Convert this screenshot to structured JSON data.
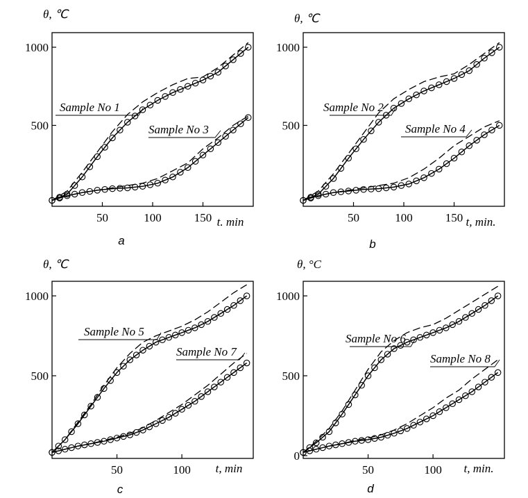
{
  "chart_data": [
    {
      "type": "line",
      "panel_label": "a",
      "ylabel": "θ, ℃",
      "xlabel": "t. min",
      "x_ticks": [
        50,
        100,
        150
      ],
      "y_ticks": [
        500,
        1000
      ],
      "xlim": [
        0,
        200
      ],
      "ylim": [
        0,
        1000
      ],
      "series": [
        {
          "name": "Sample No 1",
          "style": "circles",
          "x": [
            0,
            15,
            30,
            45,
            60,
            75,
            90,
            105,
            120,
            135,
            150,
            165,
            180,
            195
          ],
          "y": [
            20,
            60,
            170,
            300,
            420,
            520,
            600,
            660,
            710,
            750,
            790,
            840,
            920,
            1000
          ]
        },
        {
          "name": "Sample No 1",
          "style": "dashed",
          "x": [
            0,
            15,
            30,
            45,
            60,
            75,
            90,
            105,
            120,
            135,
            150,
            165,
            180,
            195
          ],
          "y": [
            20,
            80,
            200,
            330,
            460,
            570,
            650,
            710,
            760,
            800,
            810,
            870,
            950,
            1030
          ]
        },
        {
          "name": "Sample No 3",
          "style": "circles",
          "x": [
            0,
            15,
            30,
            45,
            60,
            75,
            90,
            105,
            120,
            135,
            150,
            165,
            180,
            195
          ],
          "y": [
            20,
            50,
            70,
            85,
            95,
            100,
            110,
            130,
            170,
            230,
            310,
            390,
            470,
            550
          ]
        },
        {
          "name": "Sample No 3",
          "style": "dashed",
          "x": [
            0,
            15,
            30,
            45,
            60,
            75,
            90,
            105,
            120,
            135,
            150,
            165,
            180,
            195
          ],
          "y": [
            20,
            50,
            70,
            85,
            100,
            115,
            130,
            160,
            210,
            260,
            350,
            420,
            500,
            560
          ]
        }
      ]
    },
    {
      "type": "line",
      "panel_label": "b",
      "ylabel": "θ, ℃",
      "xlabel": "t, min.",
      "x_ticks": [
        50,
        100,
        150
      ],
      "y_ticks": [
        500,
        1000
      ],
      "xlim": [
        0,
        200
      ],
      "ylim": [
        0,
        1000
      ],
      "series": [
        {
          "name": "Sample No 2",
          "style": "circles",
          "x": [
            0,
            15,
            30,
            45,
            60,
            75,
            90,
            105,
            120,
            135,
            150,
            165,
            180,
            195
          ],
          "y": [
            20,
            60,
            160,
            290,
            410,
            520,
            610,
            670,
            720,
            760,
            800,
            850,
            930,
            1000
          ]
        },
        {
          "name": "Sample No 2",
          "style": "dashed",
          "x": [
            0,
            15,
            30,
            45,
            60,
            75,
            90,
            105,
            120,
            135,
            150,
            165,
            180,
            195
          ],
          "y": [
            20,
            80,
            190,
            320,
            450,
            580,
            670,
            730,
            780,
            810,
            830,
            890,
            960,
            1030
          ]
        },
        {
          "name": "Sample No 4",
          "style": "circles",
          "x": [
            0,
            15,
            30,
            45,
            60,
            75,
            90,
            105,
            120,
            135,
            150,
            165,
            180,
            195
          ],
          "y": [
            20,
            50,
            70,
            80,
            90,
            95,
            105,
            125,
            165,
            220,
            290,
            370,
            440,
            500
          ]
        },
        {
          "name": "Sample No 4",
          "style": "dashed",
          "x": [
            0,
            15,
            30,
            45,
            60,
            75,
            90,
            105,
            120,
            135,
            150,
            165,
            180,
            195
          ],
          "y": [
            20,
            50,
            70,
            85,
            100,
            115,
            130,
            165,
            220,
            290,
            370,
            430,
            490,
            530
          ]
        }
      ]
    },
    {
      "type": "line",
      "panel_label": "c",
      "ylabel": "θ, ℃",
      "xlabel": "t, min",
      "x_ticks": [
        50,
        100
      ],
      "y_ticks": [
        500,
        1000
      ],
      "xlim": [
        0,
        155
      ],
      "ylim": [
        0,
        1000
      ],
      "series": [
        {
          "name": "Sample No 5",
          "style": "circles",
          "x": [
            0,
            10,
            20,
            30,
            40,
            50,
            60,
            70,
            80,
            90,
            100,
            110,
            120,
            130,
            140,
            150
          ],
          "y": [
            20,
            100,
            200,
            310,
            420,
            520,
            600,
            660,
            710,
            740,
            770,
            800,
            840,
            890,
            940,
            1000
          ]
        },
        {
          "name": "Sample No 5",
          "style": "dashed",
          "x": [
            0,
            10,
            20,
            30,
            40,
            50,
            60,
            70,
            80,
            90,
            100,
            110,
            120,
            130,
            140,
            150
          ],
          "y": [
            20,
            100,
            210,
            320,
            440,
            550,
            640,
            710,
            750,
            780,
            810,
            850,
            900,
            960,
            1020,
            1070
          ]
        },
        {
          "name": "Sample No 7",
          "style": "circles",
          "x": [
            0,
            10,
            20,
            30,
            40,
            50,
            60,
            70,
            80,
            90,
            100,
            110,
            120,
            130,
            140,
            150
          ],
          "y": [
            20,
            40,
            60,
            75,
            90,
            110,
            130,
            160,
            200,
            240,
            290,
            340,
            400,
            460,
            520,
            580
          ]
        },
        {
          "name": "Sample No 7",
          "style": "dashed",
          "x": [
            0,
            10,
            20,
            30,
            40,
            50,
            60,
            70,
            80,
            90,
            100,
            110,
            120,
            130,
            140,
            150
          ],
          "y": [
            20,
            40,
            60,
            75,
            95,
            115,
            140,
            175,
            220,
            270,
            320,
            380,
            440,
            510,
            580,
            640
          ]
        }
      ]
    },
    {
      "type": "line",
      "panel_label": "d",
      "ylabel": "θ, °C",
      "xlabel": "t, min.",
      "x_ticks": [
        50,
        100
      ],
      "y_ticks": [
        0,
        500,
        1000
      ],
      "y_tick_labels": [
        "0",
        "500",
        "1000"
      ],
      "xlim": [
        0,
        155
      ],
      "ylim": [
        0,
        1000
      ],
      "series": [
        {
          "name": "Sample No 6",
          "style": "circles",
          "x": [
            0,
            10,
            20,
            30,
            40,
            50,
            60,
            70,
            80,
            90,
            100,
            110,
            120,
            130,
            140,
            150
          ],
          "y": [
            20,
            80,
            150,
            260,
            380,
            500,
            600,
            670,
            710,
            740,
            770,
            800,
            840,
            890,
            940,
            1000
          ]
        },
        {
          "name": "Sample No 6",
          "style": "dashed",
          "x": [
            0,
            10,
            20,
            30,
            40,
            50,
            60,
            70,
            80,
            90,
            100,
            110,
            120,
            130,
            140,
            150
          ],
          "y": [
            20,
            90,
            170,
            280,
            410,
            540,
            650,
            720,
            770,
            800,
            820,
            860,
            910,
            960,
            1010,
            1060
          ]
        },
        {
          "name": "Sample No 8",
          "style": "circles",
          "x": [
            0,
            10,
            20,
            30,
            40,
            50,
            60,
            70,
            80,
            90,
            100,
            110,
            120,
            130,
            140,
            150
          ],
          "y": [
            20,
            40,
            60,
            75,
            90,
            100,
            115,
            140,
            170,
            210,
            250,
            300,
            350,
            400,
            460,
            520
          ]
        },
        {
          "name": "Sample No 8",
          "style": "dashed",
          "x": [
            0,
            10,
            20,
            30,
            40,
            50,
            60,
            70,
            80,
            90,
            100,
            110,
            120,
            130,
            140,
            150
          ],
          "y": [
            20,
            40,
            60,
            75,
            95,
            110,
            130,
            160,
            200,
            250,
            300,
            360,
            410,
            480,
            540,
            600
          ]
        }
      ]
    }
  ]
}
